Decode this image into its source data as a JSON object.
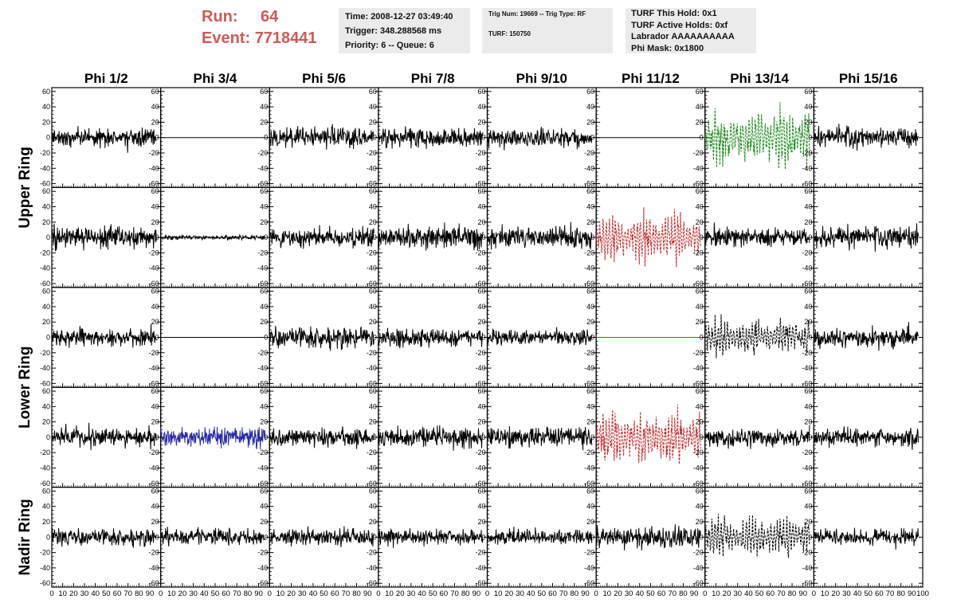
{
  "header": {
    "run_label": "Run:",
    "run_value": "64",
    "event_label": "Event:",
    "event_value": "7718441",
    "info1": [
      "Time: 2008-12-27 03:49:40",
      "Trigger: 348.288568 ms",
      "Priority: 6 -- Queue: 6"
    ],
    "info2": [
      "Trig Num: 19669 -- Trig Type: RF",
      "TURF: 150750"
    ],
    "info3": [
      "TURF This Hold: 0x1",
      "TURF Active Holds: 0xf",
      "Labrador AAAAAAAAAA",
      "Phi Mask: 0x1800"
    ]
  },
  "colors": {
    "header_red": "#cf5a55",
    "info_bg": "#ebebeb",
    "black": "#000000",
    "green": "#1a8a1a",
    "red": "#c42a2a",
    "blue": "#2a2aa8"
  },
  "chart_data": {
    "type": "line",
    "columns": [
      "Phi 1/2",
      "Phi 3/4",
      "Phi 5/6",
      "Phi 7/8",
      "Phi 9/10",
      "Phi 11/12",
      "Phi 13/14",
      "Phi 15/16"
    ],
    "ring_labels": [
      {
        "text": "Upper Ring",
        "rows": [
          0,
          1
        ]
      },
      {
        "text": "Lower Ring",
        "rows": [
          2,
          3
        ]
      },
      {
        "text": "Nadir Ring",
        "rows": [
          4,
          4
        ]
      }
    ],
    "xlim": [
      0,
      100
    ],
    "ylim": [
      -65,
      65
    ],
    "yticks": [
      -60,
      -40,
      -20,
      0,
      20,
      40,
      60
    ],
    "xticks": [
      0,
      10,
      20,
      30,
      40,
      50,
      60,
      70,
      80,
      90
    ],
    "x_tick_text": "0 10 20 30 40 50 60 70 80 90",
    "x_tick_text_last": "0 10 20 30 40 50 60 70 80 90100",
    "samples_per_trace": 260,
    "trace_x_range": [
      0,
      96
    ],
    "panels": [
      [
        {
          "style": "noise",
          "amp": 12,
          "color": "black",
          "seed": 11
        },
        {
          "style": "flat",
          "amp": 0,
          "color": "black",
          "seed": 12
        },
        {
          "style": "noise",
          "amp": 14,
          "color": "black",
          "seed": 13
        },
        {
          "style": "noise",
          "amp": 13,
          "color": "black",
          "seed": 14
        },
        {
          "style": "noise",
          "amp": 12,
          "color": "black",
          "seed": 15
        },
        {
          "style": "flat",
          "amp": 0,
          "color": "black",
          "seed": 16
        },
        {
          "style": "signal",
          "amp": 20,
          "color": "green",
          "seed": 17
        },
        {
          "style": "noise",
          "amp": 13,
          "color": "black",
          "seed": 18
        }
      ],
      [
        {
          "style": "noise",
          "amp": 14,
          "color": "black",
          "seed": 21
        },
        {
          "style": "small",
          "amp": 2,
          "color": "black",
          "seed": 22
        },
        {
          "style": "noise",
          "amp": 13,
          "color": "black",
          "seed": 23
        },
        {
          "style": "noise",
          "amp": 14,
          "color": "black",
          "seed": 24
        },
        {
          "style": "noise",
          "amp": 14,
          "color": "black",
          "seed": 25
        },
        {
          "style": "signal",
          "amp": 18,
          "color": "red",
          "seed": 26
        },
        {
          "style": "noise",
          "amp": 12,
          "color": "black",
          "seed": 27
        },
        {
          "style": "noise",
          "amp": 14,
          "color": "black",
          "seed": 28
        }
      ],
      [
        {
          "style": "noise",
          "amp": 12,
          "color": "black",
          "seed": 31
        },
        {
          "style": "flat",
          "amp": 0,
          "color": "black",
          "seed": 32
        },
        {
          "style": "noise",
          "amp": 14,
          "color": "black",
          "seed": 33
        },
        {
          "style": "noise",
          "amp": 12,
          "color": "black",
          "seed": 34
        },
        {
          "style": "noise",
          "amp": 10,
          "color": "black",
          "seed": 35
        },
        {
          "style": "flat",
          "amp": 0,
          "color": "green",
          "seed": 36
        },
        {
          "style": "signal",
          "amp": 14,
          "color": "black",
          "seed": 37
        },
        {
          "style": "noise",
          "amp": 13,
          "color": "black",
          "seed": 38
        }
      ],
      [
        {
          "style": "noise",
          "amp": 13,
          "color": "black",
          "seed": 41
        },
        {
          "style": "noise",
          "amp": 14,
          "color": "blue",
          "seed": 42
        },
        {
          "style": "noise",
          "amp": 12,
          "color": "black",
          "seed": 43
        },
        {
          "style": "noise",
          "amp": 13,
          "color": "black",
          "seed": 44
        },
        {
          "style": "noise",
          "amp": 14,
          "color": "black",
          "seed": 45
        },
        {
          "style": "signal",
          "amp": 20,
          "color": "red",
          "seed": 46
        },
        {
          "style": "noise",
          "amp": 12,
          "color": "black",
          "seed": 47
        },
        {
          "style": "noise",
          "amp": 12,
          "color": "black",
          "seed": 48
        }
      ],
      [
        {
          "style": "noise",
          "amp": 11,
          "color": "black",
          "seed": 51
        },
        {
          "style": "noise",
          "amp": 12,
          "color": "black",
          "seed": 52
        },
        {
          "style": "noise",
          "amp": 12,
          "color": "black",
          "seed": 53
        },
        {
          "style": "noise",
          "amp": 11,
          "color": "black",
          "seed": 54
        },
        {
          "style": "noise",
          "amp": 10,
          "color": "black",
          "seed": 55
        },
        {
          "style": "noise",
          "amp": 14,
          "color": "black",
          "seed": 56
        },
        {
          "style": "signal",
          "amp": 14,
          "color": "black",
          "seed": 57
        },
        {
          "style": "noise",
          "amp": 11,
          "color": "black",
          "seed": 58
        }
      ]
    ]
  }
}
